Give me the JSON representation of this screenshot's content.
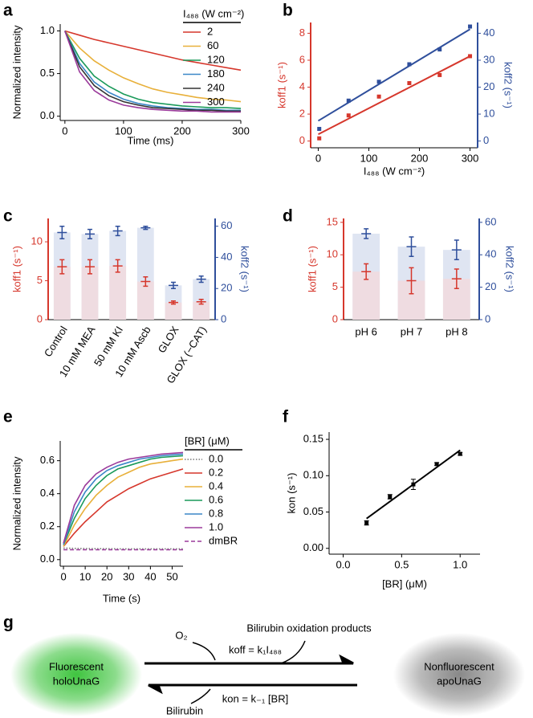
{
  "chart_data": [
    {
      "type": "line",
      "panel": "a",
      "xlabel": "Time (ms)",
      "ylabel": "Normalized intensity",
      "legend_title": "I₄₈₈ (W cm⁻²)",
      "x": [
        0,
        25,
        50,
        75,
        100,
        125,
        150,
        175,
        200,
        225,
        250,
        275,
        300
      ],
      "xlim": [
        -8,
        300
      ],
      "xticks": [
        0,
        100,
        200,
        300
      ],
      "ylim": [
        -0.05,
        1.08
      ],
      "yticks": [
        {
          "value": 0,
          "label": "0.0"
        },
        {
          "value": 0.5,
          "label": "0.5"
        },
        {
          "value": 1,
          "label": "1.0"
        }
      ],
      "series": [
        {
          "name": "2",
          "color": "#d6372c",
          "values": [
            1,
            0.95,
            0.9,
            0.86,
            0.82,
            0.78,
            0.74,
            0.7,
            0.66,
            0.63,
            0.6,
            0.57,
            0.54
          ]
        },
        {
          "name": "60",
          "color": "#e8b03a",
          "values": [
            1,
            0.8,
            0.65,
            0.54,
            0.45,
            0.38,
            0.32,
            0.28,
            0.25,
            0.22,
            0.2,
            0.19,
            0.17
          ]
        },
        {
          "name": "120",
          "color": "#1a9a5a",
          "values": [
            1,
            0.68,
            0.47,
            0.35,
            0.26,
            0.2,
            0.16,
            0.14,
            0.12,
            0.11,
            0.1,
            0.1,
            0.09
          ]
        },
        {
          "name": "180",
          "color": "#3b87c7",
          "values": [
            1,
            0.62,
            0.4,
            0.28,
            0.2,
            0.15,
            0.12,
            0.1,
            0.09,
            0.08,
            0.08,
            0.07,
            0.07
          ]
        },
        {
          "name": "240",
          "color": "#333333",
          "values": [
            1,
            0.58,
            0.36,
            0.24,
            0.17,
            0.13,
            0.1,
            0.09,
            0.08,
            0.07,
            0.07,
            0.06,
            0.06
          ]
        },
        {
          "name": "300",
          "color": "#9b3a9b",
          "values": [
            1,
            0.52,
            0.3,
            0.19,
            0.13,
            0.1,
            0.08,
            0.07,
            0.06,
            0.06,
            0.05,
            0.05,
            0.05
          ]
        }
      ]
    },
    {
      "type": "scatter",
      "panel": "b",
      "xlabel": "I₄₈₈ (W cm⁻²)",
      "ylabel": "koff1 (s⁻¹)",
      "y2label": "koff2 (s⁻¹)",
      "x": [
        2,
        60,
        120,
        180,
        240,
        300
      ],
      "fit_x": [
        0,
        300
      ],
      "xlim": [
        -15,
        315
      ],
      "xticks": [
        0,
        100,
        200,
        300
      ],
      "ylim": [
        -0.5,
        8.8
      ],
      "yticks": [
        0,
        2,
        4,
        6,
        8
      ],
      "y2lim": [
        -2.5,
        44
      ],
      "y2ticks": [
        0,
        10,
        20,
        30,
        40
      ],
      "series": [
        {
          "color": "#d6372c",
          "values": [
            0.2,
            1.9,
            3.3,
            4.3,
            4.9,
            6.3
          ],
          "fit": [
            0.5,
            6.3
          ]
        },
        {
          "color": "#2f4f9c",
          "axis": "y2",
          "values": [
            4.5,
            15,
            22,
            28.5,
            34,
            42.5
          ],
          "fit": [
            7.5,
            41.5
          ]
        }
      ]
    },
    {
      "type": "bar",
      "panel": "c",
      "ylabel": "koff1 (s⁻¹)",
      "y2label": "koff2 (s⁻¹)",
      "categories": [
        "Control",
        "10 mM MEA",
        "50 mM KI",
        "10 mM Ascb",
        "GLOX",
        "GLOX (−CAT)"
      ],
      "ylim": [
        0,
        13
      ],
      "yticks": [
        0,
        5,
        10
      ],
      "y2lim": [
        0,
        65
      ],
      "y2ticks": [
        0,
        20,
        40,
        60
      ],
      "series": [
        {
          "color": "#d6372c",
          "fill": "#efdce1",
          "values": [
            6.8,
            6.8,
            6.9,
            4.9,
            2.2,
            2.3
          ],
          "errors": [
            0.9,
            0.9,
            0.8,
            0.6,
            0.2,
            0.3
          ]
        },
        {
          "color": "#2f4f9c",
          "fill": "#dfe5f2",
          "axis": "y2",
          "values": [
            56,
            55,
            57,
            59,
            22,
            26
          ],
          "errors": [
            4,
            3,
            3,
            1,
            2,
            2
          ]
        }
      ]
    },
    {
      "type": "bar",
      "panel": "d",
      "ylabel": "koff1 (s⁻¹)",
      "y2label": "koff2 (s⁻¹)",
      "categories": [
        "pH 6",
        "pH 7",
        "pH 8"
      ],
      "ylim": [
        0,
        15.6
      ],
      "yticks": [
        0,
        5,
        10,
        15
      ],
      "y2lim": [
        0,
        62.4
      ],
      "y2ticks": [
        0,
        20,
        40,
        60
      ],
      "series": [
        {
          "color": "#d6372c",
          "fill": "#efdce1",
          "values": [
            7.4,
            6,
            6.3
          ],
          "errors": [
            1.2,
            2,
            1.5
          ]
        },
        {
          "color": "#2f4f9c",
          "fill": "#dfe5f2",
          "axis": "y2",
          "values": [
            53,
            45,
            43
          ],
          "errors": [
            3,
            6,
            6
          ]
        }
      ]
    },
    {
      "type": "line",
      "panel": "e",
      "xlabel": "Time (s)",
      "ylabel": "Normalized intensity",
      "legend_title": "[BR] (μM)",
      "x": [
        0,
        5,
        10,
        15,
        20,
        25,
        30,
        35,
        40,
        45,
        50,
        55
      ],
      "xlim": [
        -1.5,
        55
      ],
      "xticks": [
        0,
        10,
        20,
        30,
        40,
        50
      ],
      "ylim": [
        -0.04,
        0.72
      ],
      "yticks": [
        {
          "value": 0,
          "label": "0.0"
        },
        {
          "value": 0.2,
          "label": "0.2"
        },
        {
          "value": 0.4,
          "label": "0.4"
        },
        {
          "value": 0.6,
          "label": "0.6"
        }
      ],
      "series": [
        {
          "name": "0.0",
          "color": "#777777",
          "style": "dotted",
          "values": [
            0.07,
            0.068,
            0.067,
            0.066,
            0.066,
            0.065,
            0.065,
            0.065,
            0.065,
            0.065,
            0.065,
            0.065
          ]
        },
        {
          "name": "0.2",
          "color": "#d6372c",
          "values": [
            0.08,
            0.16,
            0.23,
            0.29,
            0.35,
            0.39,
            0.43,
            0.46,
            0.49,
            0.51,
            0.53,
            0.55
          ]
        },
        {
          "name": "0.4",
          "color": "#e8b03a",
          "values": [
            0.08,
            0.21,
            0.31,
            0.39,
            0.45,
            0.5,
            0.53,
            0.56,
            0.58,
            0.59,
            0.6,
            0.61
          ]
        },
        {
          "name": "0.6",
          "color": "#1a9a5a",
          "values": [
            0.09,
            0.25,
            0.37,
            0.45,
            0.51,
            0.55,
            0.57,
            0.59,
            0.61,
            0.62,
            0.625,
            0.63
          ]
        },
        {
          "name": "0.8",
          "color": "#3b87c7",
          "values": [
            0.09,
            0.29,
            0.41,
            0.49,
            0.54,
            0.57,
            0.59,
            0.61,
            0.62,
            0.63,
            0.635,
            0.64
          ]
        },
        {
          "name": "1.0",
          "color": "#9b3a9b",
          "values": [
            0.1,
            0.33,
            0.45,
            0.52,
            0.56,
            0.59,
            0.61,
            0.62,
            0.63,
            0.64,
            0.645,
            0.65
          ]
        },
        {
          "name": "dmBR",
          "color": "#9b3a9b",
          "style": "dashed",
          "values": [
            0.06,
            0.06,
            0.06,
            0.06,
            0.06,
            0.06,
            0.06,
            0.06,
            0.06,
            0.06,
            0.06,
            0.06
          ]
        }
      ]
    },
    {
      "type": "scatter",
      "panel": "f",
      "xlabel": "[BR] (μM)",
      "ylabel": "kon (s⁻¹)",
      "x": [
        0.2,
        0.4,
        0.6,
        0.8,
        1.0
      ],
      "fit_x": [
        0.2,
        1.0
      ],
      "xlim": [
        -0.12,
        1.17
      ],
      "xticks": [
        {
          "value": 0,
          "label": "0.0"
        },
        {
          "value": 0.5,
          "label": "0.5"
        },
        {
          "value": 1,
          "label": "1.0"
        }
      ],
      "ylim": [
        -0.008,
        0.16
      ],
      "yticks": [
        {
          "value": 0,
          "label": "0.00"
        },
        0.05,
        {
          "value": 0.1,
          "label": "0.10"
        },
        0.15
      ],
      "series": [
        {
          "color": "#000000",
          "values": [
            0.035,
            0.071,
            0.088,
            0.116,
            0.13
          ],
          "errors": [
            0.003,
            0.003,
            0.007,
            0.002,
            0.002
          ],
          "fit": [
            0.041,
            0.135
          ]
        }
      ]
    }
  ],
  "diagram": {
    "panel": "g",
    "left": [
      "Fluorescent",
      "holoUnaG"
    ],
    "right": [
      "Nonfluorescent",
      "apoUnaG"
    ],
    "oxygen": "O₂",
    "products": "Bilirubin oxidation products",
    "koff": "koff = k₁I₄₈₈",
    "kon": "kon = k₋₁ [BR]",
    "bilirubin": "Bilirubin"
  }
}
